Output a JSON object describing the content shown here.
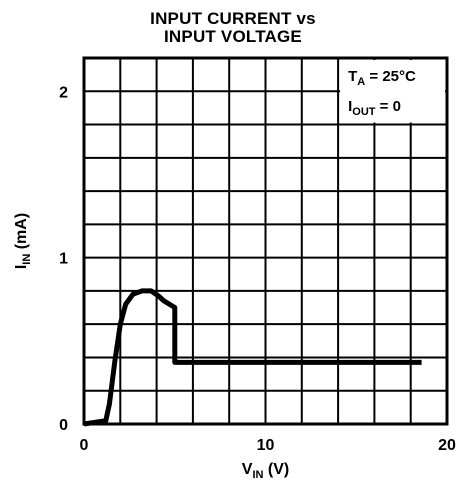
{
  "chart_data": {
    "type": "line",
    "title_line1": "INPUT CURRENT vs",
    "title_line2": "INPUT VOLTAGE",
    "xlabel": {
      "main": "V",
      "sub": "IN",
      "unit": " (V)"
    },
    "ylabel": {
      "main": "I",
      "sub": "IN",
      "unit": " (mA)"
    },
    "xlim": [
      0,
      20
    ],
    "ylim": [
      0,
      2.2
    ],
    "grid": true,
    "x_ticks": [
      0,
      10,
      20
    ],
    "y_ticks": [
      0,
      1,
      2
    ],
    "x_tick_labels": [
      "0",
      "10",
      "20"
    ],
    "y_tick_labels": [
      "0",
      "1",
      "2"
    ],
    "annotations": {
      "ta": {
        "main": "T",
        "sub": "A",
        "rest": " = 25°C"
      },
      "iout": {
        "main": "I",
        "sub": "OUT",
        "rest": " = 0"
      }
    },
    "series": [
      {
        "x": [
          0,
          1.2,
          1.4,
          1.7,
          2.0,
          2.3,
          2.7,
          3.2,
          3.7,
          4.1,
          4.4,
          5.0,
          5.0,
          5.2,
          10,
          15,
          18.6
        ],
        "y": [
          0,
          0.02,
          0.12,
          0.38,
          0.6,
          0.72,
          0.78,
          0.8,
          0.8,
          0.77,
          0.74,
          0.7,
          0.37,
          0.37,
          0.37,
          0.37,
          0.37
        ]
      }
    ]
  }
}
